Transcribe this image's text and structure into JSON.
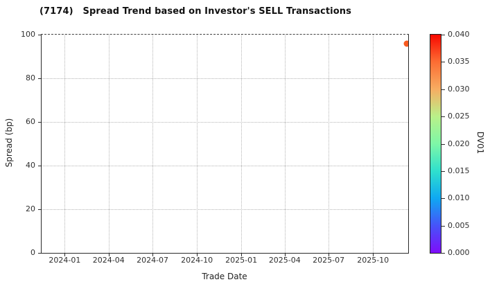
{
  "chart_data": {
    "type": "scatter",
    "title": "(7174)   Spread Trend based on Investor's SELL Transactions",
    "xlabel": "Trade Date",
    "ylabel": "Spread (bp)",
    "x_tick_labels": [
      "2024-01",
      "2024-04",
      "2024-07",
      "2024-10",
      "2025-01",
      "2025-04",
      "2025-07",
      "2025-10"
    ],
    "xlim": [
      "2023-11-14",
      "2025-12-13"
    ],
    "y_ticks": [
      0,
      20,
      40,
      60,
      80,
      100
    ],
    "ylim": [
      0,
      100
    ],
    "grid": true,
    "grid_style": "dotted",
    "points": [
      {
        "trade_date": "2025-12-10",
        "spread_bp": 96,
        "dv01": 0.036,
        "color": "#f85a1f"
      }
    ],
    "colorbar": {
      "label": "DV01",
      "tick_labels": [
        "0.000",
        "0.005",
        "0.010",
        "0.015",
        "0.020",
        "0.025",
        "0.030",
        "0.035",
        "0.040"
      ],
      "vmin": 0.0,
      "vmax": 0.04,
      "colormap": "rainbow",
      "gradient_stops": [
        "#7f0dfa",
        "#4653f9",
        "#0fa8f2",
        "#2fe0cd",
        "#7ef7a7",
        "#b9f189",
        "#f7ad62",
        "#fc6d33",
        "#f80800"
      ]
    },
    "axis_color": "#2a2a2a",
    "grid_color": "#b4b4b4",
    "text_color": "#262626",
    "background": "#ffffff"
  }
}
